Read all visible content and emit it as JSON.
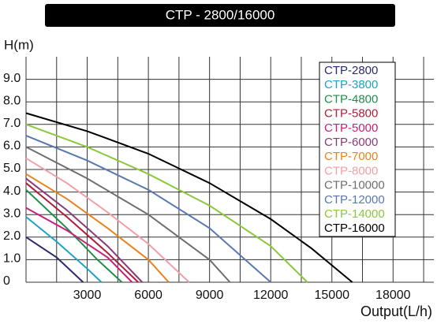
{
  "chart_data": {
    "type": "line",
    "title": "CTP - 2800/16000",
    "y_label": "H(m)",
    "x_label": "Output(L/h)",
    "xlim": [
      0,
      20000
    ],
    "ylim": [
      0,
      10
    ],
    "xticks": [
      3000,
      6000,
      9000,
      12000,
      15000,
      18000
    ],
    "xminor": [
      1500,
      4500,
      7500,
      10500,
      13500,
      16500,
      19500
    ],
    "yticks": [
      0,
      {
        "value": 1,
        "label": "1.0"
      },
      {
        "value": 2,
        "label": "2.0"
      },
      {
        "value": 3,
        "label": "3.0"
      },
      {
        "value": 4,
        "label": "4.0"
      },
      {
        "value": 5,
        "label": "5.0"
      },
      {
        "value": 6,
        "label": "6.0"
      },
      {
        "value": 7,
        "label": "7.0"
      },
      {
        "value": 8,
        "label": "8.0"
      },
      {
        "value": 9,
        "label": "9.0"
      }
    ],
    "grid": true,
    "series": [
      {
        "name": "CTP-2800",
        "color": "#2a2a6e",
        "x": [
          0,
          1500,
          2800
        ],
        "values": [
          2.0,
          1.1,
          0
        ]
      },
      {
        "name": "CTP-3800",
        "color": "#1aa3c8",
        "x": [
          0,
          1500,
          3000,
          3700
        ],
        "values": [
          2.9,
          1.8,
          0.6,
          0
        ]
      },
      {
        "name": "CTP-4800",
        "color": "#1f8f4a",
        "x": [
          0,
          2000,
          3500,
          4700
        ],
        "values": [
          4.1,
          2.4,
          1.0,
          0
        ]
      },
      {
        "name": "CTP-5800",
        "color": "#b01e3a",
        "x": [
          0,
          2000,
          4000,
          5500
        ],
        "values": [
          4.4,
          2.9,
          1.3,
          0
        ]
      },
      {
        "name": "CTP-5000",
        "color": "#c8207a",
        "x": [
          0,
          2000,
          4000,
          5200
        ],
        "values": [
          3.3,
          2.3,
          1.1,
          0
        ]
      },
      {
        "name": "CTP-6000",
        "color": "#8a3a7c",
        "x": [
          0,
          2000,
          4000,
          5700
        ],
        "values": [
          4.6,
          3.2,
          1.6,
          0
        ]
      },
      {
        "name": "CTP-7000",
        "color": "#e8831e",
        "x": [
          0,
          2000,
          4000,
          6000,
          7000
        ],
        "values": [
          4.8,
          3.7,
          2.4,
          1.0,
          0
        ]
      },
      {
        "name": "CTP-8000",
        "color": "#f0a0a8",
        "x": [
          0,
          2000,
          4000,
          6000,
          8000
        ],
        "values": [
          5.5,
          4.4,
          3.1,
          1.7,
          0
        ]
      },
      {
        "name": "CTP-10000",
        "color": "#6e6e6e",
        "x": [
          0,
          3000,
          6000,
          9000,
          10000
        ],
        "values": [
          6.0,
          4.6,
          3.0,
          1.0,
          0
        ]
      },
      {
        "name": "CTP-12000",
        "color": "#5a78b0",
        "x": [
          0,
          3000,
          6000,
          9000,
          12000
        ],
        "values": [
          6.5,
          5.4,
          4.1,
          2.4,
          0
        ]
      },
      {
        "name": "CTP-14000",
        "color": "#8cc83c",
        "x": [
          0,
          3000,
          6000,
          9000,
          12000,
          13800
        ],
        "values": [
          7.0,
          6.0,
          4.8,
          3.4,
          1.6,
          0
        ]
      },
      {
        "name": "CTP-16000",
        "color": "#000000",
        "x": [
          0,
          3000,
          6000,
          9000,
          12000,
          14000,
          16000
        ],
        "values": [
          7.5,
          6.7,
          5.7,
          4.4,
          2.8,
          1.5,
          0
        ]
      }
    ]
  }
}
